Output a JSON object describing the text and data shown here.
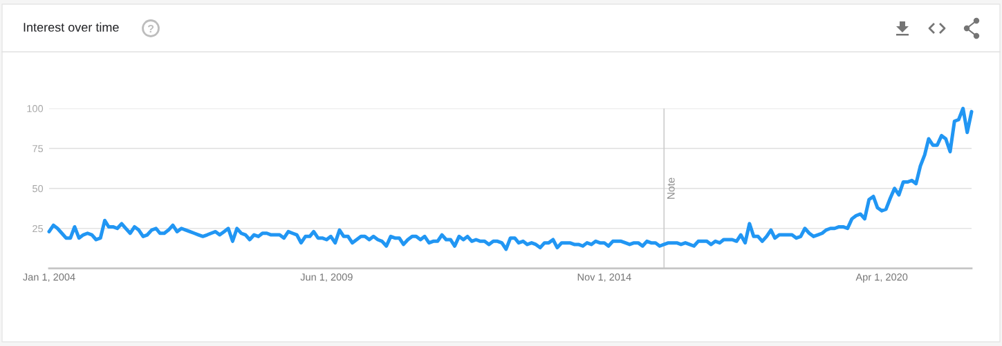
{
  "chart_data": {
    "type": "line",
    "title": "Interest over time",
    "x": [
      "2004-01",
      "2004-02",
      "2004-03",
      "2004-04",
      "2004-05",
      "2004-06",
      "2004-07",
      "2004-08",
      "2004-09",
      "2004-10",
      "2004-11",
      "2004-12",
      "2005-01",
      "2005-02",
      "2005-03",
      "2005-04",
      "2005-05",
      "2005-06",
      "2005-07",
      "2005-08",
      "2005-09",
      "2005-10",
      "2005-11",
      "2005-12",
      "2006-01",
      "2006-02",
      "2006-03",
      "2006-04",
      "2006-05",
      "2006-06",
      "2006-07",
      "2006-08",
      "2006-09",
      "2006-10",
      "2006-11",
      "2006-12",
      "2007-01",
      "2007-02",
      "2007-03",
      "2007-04",
      "2007-05",
      "2007-06",
      "2007-07",
      "2007-08",
      "2007-09",
      "2007-10",
      "2007-11",
      "2007-12",
      "2008-01",
      "2008-02",
      "2008-03",
      "2008-04",
      "2008-05",
      "2008-06",
      "2008-07",
      "2008-08",
      "2008-09",
      "2008-10",
      "2008-11",
      "2008-12",
      "2009-01",
      "2009-02",
      "2009-03",
      "2009-04",
      "2009-05",
      "2009-06",
      "2009-07",
      "2009-08",
      "2009-09",
      "2009-10",
      "2009-11",
      "2009-12",
      "2010-01",
      "2010-02",
      "2010-03",
      "2010-04",
      "2010-05",
      "2010-06",
      "2010-07",
      "2010-08",
      "2010-09",
      "2010-10",
      "2010-11",
      "2010-12",
      "2011-01",
      "2011-02",
      "2011-03",
      "2011-04",
      "2011-05",
      "2011-06",
      "2011-07",
      "2011-08",
      "2011-09",
      "2011-10",
      "2011-11",
      "2011-12",
      "2012-01",
      "2012-02",
      "2012-03",
      "2012-04",
      "2012-05",
      "2012-06",
      "2012-07",
      "2012-08",
      "2012-09",
      "2012-10",
      "2012-11",
      "2012-12",
      "2013-01",
      "2013-02",
      "2013-03",
      "2013-04",
      "2013-05",
      "2013-06",
      "2013-07",
      "2013-08",
      "2013-09",
      "2013-10",
      "2013-11",
      "2013-12",
      "2014-01",
      "2014-02",
      "2014-03",
      "2014-04",
      "2014-05",
      "2014-06",
      "2014-07",
      "2014-08",
      "2014-09",
      "2014-10",
      "2014-11",
      "2014-12",
      "2015-01",
      "2015-02",
      "2015-03",
      "2015-04",
      "2015-05",
      "2015-06",
      "2015-07",
      "2015-08",
      "2015-09",
      "2015-10",
      "2015-11",
      "2015-12",
      "2016-01",
      "2016-02",
      "2016-03",
      "2016-04",
      "2016-05",
      "2016-06",
      "2016-07",
      "2016-08",
      "2016-09",
      "2016-10",
      "2016-11",
      "2016-12",
      "2017-01",
      "2017-02",
      "2017-03",
      "2017-04",
      "2017-05",
      "2017-06",
      "2017-07",
      "2017-08",
      "2017-09",
      "2017-10",
      "2017-11",
      "2017-12",
      "2018-01",
      "2018-02",
      "2018-03",
      "2018-04",
      "2018-05",
      "2018-06",
      "2018-07",
      "2018-08",
      "2018-09",
      "2018-10",
      "2018-11",
      "2018-12",
      "2019-01",
      "2019-02",
      "2019-03",
      "2019-04",
      "2019-05",
      "2019-06",
      "2019-07",
      "2019-08",
      "2019-09",
      "2019-10",
      "2019-11",
      "2019-12",
      "2020-01",
      "2020-02",
      "2020-03",
      "2020-04",
      "2020-05",
      "2020-06",
      "2020-07",
      "2020-08",
      "2020-09",
      "2020-10",
      "2020-11",
      "2020-12",
      "2021-01",
      "2021-02",
      "2021-03",
      "2021-04",
      "2021-05",
      "2021-06",
      "2021-07",
      "2021-08",
      "2021-09",
      "2021-10",
      "2021-11",
      "2021-12",
      "2022-01"
    ],
    "series": [
      {
        "color": "#2196f3",
        "values": [
          23,
          27,
          25,
          22,
          19,
          19,
          26,
          19,
          21,
          22,
          21,
          18,
          19,
          30,
          26,
          26,
          25,
          28,
          25,
          22,
          26,
          24,
          20,
          21,
          24,
          25,
          22,
          22,
          24,
          27,
          23,
          25,
          24,
          23,
          22,
          21,
          20,
          21,
          22,
          23,
          21,
          23,
          25,
          17,
          25,
          22,
          21,
          18,
          21,
          20,
          22,
          22,
          21,
          21,
          21,
          19,
          23,
          22,
          21,
          16,
          20,
          20,
          23,
          19,
          19,
          18,
          20,
          16,
          24,
          20,
          20,
          16,
          18,
          20,
          20,
          18,
          20,
          18,
          17,
          14,
          20,
          19,
          19,
          15,
          18,
          20,
          20,
          18,
          20,
          16,
          17,
          17,
          21,
          18,
          18,
          14,
          20,
          18,
          20,
          17,
          18,
          17,
          17,
          15,
          17,
          17,
          16,
          12,
          19,
          19,
          16,
          17,
          15,
          16,
          15,
          13,
          16,
          16,
          18,
          13,
          16,
          16,
          16,
          15,
          15,
          14,
          16,
          15,
          17,
          16,
          16,
          14,
          17,
          17,
          17,
          16,
          15,
          16,
          16,
          14,
          17,
          16,
          16,
          14,
          15,
          16,
          16,
          16,
          15,
          16,
          15,
          14,
          17,
          17,
          17,
          15,
          17,
          16,
          18,
          18,
          18,
          17,
          21,
          16,
          28,
          20,
          20,
          17,
          20,
          24,
          19,
          21,
          21,
          21,
          21,
          19,
          20,
          25,
          22,
          20,
          21,
          22,
          24,
          25,
          25,
          26,
          26,
          25,
          31,
          33,
          34,
          31,
          43,
          45,
          38,
          36,
          37,
          44,
          50,
          46,
          54,
          54,
          55,
          53,
          64,
          71,
          81,
          77,
          77,
          83,
          81,
          73,
          92,
          93,
          100,
          85,
          98
        ]
      }
    ],
    "xlim": [
      "2004-01-01",
      "2022-01-01"
    ],
    "xticks": [
      {
        "value": "2004-01-01",
        "label": "Jan 1, 2004"
      },
      {
        "value": "2009-06-01",
        "label": "Jun 1, 2009"
      },
      {
        "value": "2014-11-01",
        "label": "Nov 1, 2014"
      },
      {
        "value": "2020-04-01",
        "label": "Apr 1, 2020"
      }
    ],
    "ylim": [
      0,
      100
    ],
    "yticks": [
      25,
      50,
      75,
      100
    ],
    "grid": "y",
    "line_style": "solid",
    "ref_lines": [
      {
        "axis": "x",
        "value": "2016-01-01",
        "label": "Note",
        "color": "#cccccc"
      }
    ]
  }
}
